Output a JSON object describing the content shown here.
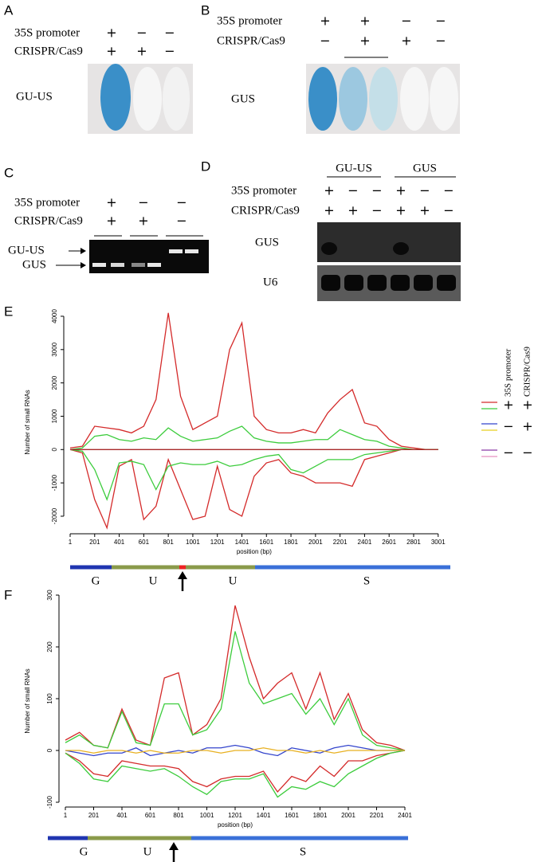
{
  "panels": {
    "A": {
      "label": "A",
      "image_label": "GU-US",
      "rows": [
        {
          "label": "35S promoter",
          "signs": [
            "+",
            "−",
            "−"
          ]
        },
        {
          "label": "CRISPR/Cas9",
          "signs": [
            "+",
            "+",
            "−"
          ]
        }
      ]
    },
    "B": {
      "label": "B",
      "image_label": "GUS",
      "rows": [
        {
          "label": "35S promoter",
          "signs": [
            "+",
            "+",
            "−",
            "−"
          ]
        },
        {
          "label": "CRISPR/Cas9",
          "signs": [
            "−",
            "+",
            "+",
            "−"
          ]
        }
      ]
    },
    "C": {
      "label": "C",
      "band_labels": [
        "GU-US",
        "GUS"
      ],
      "rows": [
        {
          "label": "35S promoter",
          "signs": [
            "+",
            "−",
            "−"
          ]
        },
        {
          "label": "CRISPR/Cas9",
          "signs": [
            "+",
            "+",
            "−"
          ]
        }
      ]
    },
    "D": {
      "label": "D",
      "groups": [
        "GU-US",
        "GUS"
      ],
      "blot_labels": [
        "GUS",
        "U6"
      ],
      "rows": [
        {
          "label": "35S promoter",
          "signs": [
            "+",
            "−",
            "−",
            "+",
            "−",
            "−"
          ]
        },
        {
          "label": "CRISPR/Cas9",
          "signs": [
            "+",
            "+",
            "−",
            "+",
            "+",
            "−"
          ]
        }
      ]
    }
  },
  "chart_data": [
    {
      "type": "line",
      "panel_label": "E",
      "ylabel": "Number of small RNAs",
      "xlabel": "position (bp)",
      "x": [
        1,
        101,
        201,
        301,
        401,
        501,
        601,
        701,
        801,
        901,
        1001,
        1101,
        1201,
        1301,
        1401,
        1501,
        1601,
        1701,
        1801,
        1901,
        2001,
        2101,
        2201,
        2301,
        2401,
        2501,
        2601,
        2701,
        2801,
        2901,
        3001
      ],
      "series": [
        {
          "color": "#d42a2a",
          "values": [
            50,
            100,
            700,
            650,
            600,
            500,
            700,
            1500,
            4100,
            1600,
            600,
            800,
            1000,
            3000,
            3800,
            1000,
            600,
            500,
            500,
            600,
            500,
            1100,
            1500,
            1800,
            800,
            700,
            300,
            100,
            50,
            0,
            0
          ]
        },
        {
          "color": "#3ccc3c",
          "values": [
            0,
            50,
            400,
            450,
            300,
            250,
            350,
            300,
            650,
            400,
            250,
            300,
            350,
            550,
            700,
            350,
            250,
            200,
            200,
            250,
            300,
            300,
            600,
            450,
            300,
            250,
            100,
            50,
            0,
            0,
            0
          ]
        },
        {
          "color": "#d42a2a",
          "values": [
            0,
            -100,
            -1500,
            -2350,
            -500,
            -300,
            -2100,
            -1700,
            -300,
            -1200,
            -2100,
            -2000,
            -500,
            -1800,
            -2000,
            -800,
            -400,
            -300,
            -700,
            -800,
            -1000,
            -1000,
            -1000,
            -1100,
            -300,
            -200,
            -100,
            0,
            0,
            0,
            0
          ]
        },
        {
          "color": "#3ccc3c",
          "values": [
            0,
            -50,
            -600,
            -1500,
            -400,
            -350,
            -450,
            -1200,
            -500,
            -400,
            -450,
            -450,
            -350,
            -500,
            -450,
            -300,
            -200,
            -150,
            -600,
            -700,
            -500,
            -300,
            -300,
            -300,
            -150,
            -100,
            -50,
            0,
            0,
            0,
            0
          ]
        },
        {
          "color": "#a82a2a",
          "values": [
            0,
            0,
            0,
            0,
            0,
            0,
            0,
            0,
            0,
            0,
            0,
            0,
            0,
            0,
            0,
            0,
            0,
            0,
            0,
            0,
            0,
            0,
            0,
            0,
            0,
            0,
            0,
            0,
            0,
            0,
            0
          ]
        }
      ],
      "xlim": [
        1,
        3100
      ],
      "ylim": [
        -2400,
        4200
      ],
      "xticks": [
        1,
        201,
        401,
        601,
        801,
        1001,
        1201,
        1401,
        1601,
        1801,
        2001,
        2201,
        2401,
        2601,
        2801,
        3001
      ],
      "yticks": [
        -2000,
        -1000,
        0,
        1000,
        2000,
        3000,
        4000
      ],
      "gene_labels": [
        "G",
        "U",
        "U",
        "S"
      ],
      "legend": {
        "headers": [
          "35S promoter",
          "CRISPR/Cas9"
        ],
        "rows": [
          {
            "colors": [
              "#d42a2a",
              "#3ccc3c"
            ],
            "signs": [
              "+",
              "+"
            ]
          },
          {
            "colors": [
              "#3344cc",
              "#e8d020"
            ],
            "signs": [
              "−",
              "+"
            ]
          },
          {
            "colors": [
              "#8a3aa8",
              "#e890c0"
            ],
            "signs": [
              "−",
              "−"
            ]
          }
        ]
      }
    },
    {
      "type": "line",
      "panel_label": "F",
      "ylabel": "Number of small RNAs",
      "xlabel": "position (bp)",
      "x": [
        1,
        101,
        201,
        301,
        401,
        501,
        601,
        701,
        801,
        901,
        1001,
        1101,
        1201,
        1301,
        1401,
        1501,
        1601,
        1701,
        1801,
        1901,
        2001,
        2101,
        2201,
        2301,
        2401
      ],
      "series": [
        {
          "color": "#d42a2a",
          "values": [
            20,
            35,
            10,
            5,
            80,
            20,
            10,
            140,
            150,
            30,
            50,
            100,
            280,
            180,
            100,
            130,
            150,
            80,
            150,
            60,
            110,
            40,
            15,
            10,
            0
          ]
        },
        {
          "color": "#3ccc3c",
          "values": [
            15,
            30,
            10,
            5,
            75,
            15,
            10,
            90,
            90,
            30,
            40,
            80,
            230,
            130,
            90,
            100,
            110,
            70,
            100,
            50,
            100,
            30,
            10,
            5,
            0
          ]
        },
        {
          "color": "#d42a2a",
          "values": [
            -5,
            -20,
            -45,
            -50,
            -20,
            -25,
            -30,
            -30,
            -35,
            -60,
            -70,
            -55,
            -50,
            -50,
            -40,
            -80,
            -50,
            -60,
            -30,
            -50,
            -20,
            -20,
            -10,
            -5,
            0
          ]
        },
        {
          "color": "#3ccc3c",
          "values": [
            -5,
            -25,
            -55,
            -60,
            -30,
            -35,
            -40,
            -35,
            -50,
            -70,
            -85,
            -60,
            -55,
            -55,
            -45,
            -90,
            -70,
            -75,
            -60,
            -70,
            -45,
            -30,
            -15,
            -5,
            0
          ]
        },
        {
          "color": "#3344cc",
          "values": [
            0,
            -5,
            -10,
            -5,
            -5,
            5,
            -10,
            -5,
            0,
            -5,
            5,
            5,
            10,
            5,
            -5,
            -10,
            5,
            0,
            -5,
            5,
            10,
            5,
            0,
            0,
            0
          ]
        },
        {
          "color": "#e8b020",
          "values": [
            0,
            0,
            -5,
            0,
            0,
            -5,
            0,
            -5,
            -5,
            0,
            0,
            -5,
            0,
            0,
            5,
            0,
            0,
            -5,
            0,
            -5,
            0,
            0,
            0,
            0,
            0
          ]
        }
      ],
      "xlim": [
        1,
        2401
      ],
      "ylim": [
        -105,
        305
      ],
      "xticks": [
        1,
        201,
        401,
        601,
        801,
        1001,
        1201,
        1401,
        1601,
        1801,
        2001,
        2201,
        2401
      ],
      "yticks": [
        -100,
        0,
        100,
        200,
        300
      ],
      "gene_labels": [
        "G",
        "U",
        "S"
      ]
    }
  ]
}
